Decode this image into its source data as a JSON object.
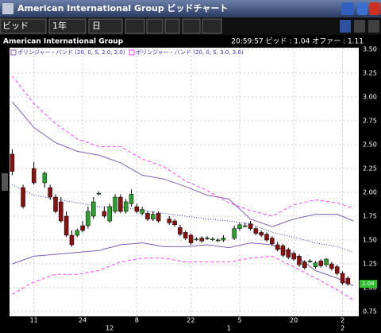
{
  "window": {
    "title": "American International Group ビッドチャート"
  },
  "toolbar": {
    "price_type": "ビッド",
    "period": "1年",
    "interval": "日"
  },
  "header": {
    "symbol": "American International Group",
    "quote": "20:59:57  ビッド : 1.04  オファー : 1.11"
  },
  "chart_data": {
    "type": "candlestick",
    "x": [
      0,
      2,
      4,
      6,
      7,
      8,
      9,
      10,
      11,
      12,
      13,
      14,
      15,
      16,
      17,
      18,
      19,
      20,
      21,
      22,
      23,
      24,
      25,
      26,
      27,
      29,
      30,
      31,
      32,
      33,
      34,
      35,
      36,
      37,
      38,
      39,
      41,
      42,
      43,
      44,
      45,
      46,
      47,
      48,
      49,
      50,
      51,
      52,
      53,
      54,
      55,
      56,
      57,
      58,
      59,
      60,
      61,
      62
    ],
    "open": [
      2.4,
      2.05,
      2.25,
      2.1,
      2.05,
      1.95,
      1.9,
      1.75,
      1.55,
      1.55,
      1.65,
      1.65,
      1.75,
      1.99,
      1.8,
      1.7,
      1.8,
      1.95,
      1.8,
      1.88,
      1.85,
      1.78,
      1.78,
      1.72,
      1.78,
      1.72,
      1.7,
      1.63,
      1.58,
      1.55,
      1.51,
      1.52,
      1.52,
      1.51,
      1.5,
      1.5,
      1.52,
      1.62,
      1.65,
      1.67,
      1.62,
      1.58,
      1.56,
      1.52,
      1.45,
      1.44,
      1.4,
      1.36,
      1.33,
      1.27,
      1.28,
      1.22,
      1.28,
      1.24,
      1.25,
      1.22,
      1.15,
      1.1
    ],
    "high": [
      2.45,
      2.08,
      2.32,
      2.22,
      2.08,
      1.98,
      1.95,
      1.8,
      1.6,
      1.62,
      1.7,
      1.85,
      1.95,
      2.01,
      1.85,
      1.88,
      1.98,
      1.98,
      1.93,
      2.03,
      1.88,
      1.85,
      1.8,
      1.8,
      1.8,
      1.75,
      1.72,
      1.66,
      1.6,
      1.57,
      1.53,
      1.54,
      1.54,
      1.53,
      1.52,
      1.55,
      1.65,
      1.68,
      1.68,
      1.7,
      1.64,
      1.6,
      1.58,
      1.54,
      1.48,
      1.46,
      1.42,
      1.38,
      1.35,
      1.29,
      1.3,
      1.28,
      1.3,
      1.31,
      1.27,
      1.24,
      1.17,
      1.12
    ],
    "low": [
      2.18,
      1.83,
      2.08,
      2.05,
      1.92,
      1.78,
      1.68,
      1.53,
      1.43,
      1.53,
      1.58,
      1.62,
      1.72,
      1.97,
      1.73,
      1.68,
      1.78,
      1.78,
      1.78,
      1.85,
      1.78,
      1.76,
      1.7,
      1.7,
      1.68,
      1.66,
      1.64,
      1.54,
      1.5,
      1.45,
      1.49,
      1.47,
      1.5,
      1.49,
      1.48,
      1.48,
      1.5,
      1.6,
      1.63,
      1.6,
      1.55,
      1.53,
      1.48,
      1.44,
      1.38,
      1.32,
      1.3,
      1.28,
      1.22,
      1.19,
      1.26,
      1.2,
      1.21,
      1.22,
      1.18,
      1.13,
      1.03,
      1.02
    ],
    "close": [
      2.22,
      1.85,
      2.1,
      2.2,
      1.95,
      1.8,
      1.7,
      1.55,
      1.45,
      1.6,
      1.6,
      1.8,
      1.9,
      1.99,
      1.75,
      1.85,
      1.95,
      1.8,
      1.9,
      1.98,
      1.8,
      1.82,
      1.72,
      1.77,
      1.7,
      1.68,
      1.66,
      1.56,
      1.52,
      1.47,
      1.51,
      1.49,
      1.52,
      1.51,
      1.5,
      1.52,
      1.62,
      1.66,
      1.65,
      1.62,
      1.57,
      1.55,
      1.5,
      1.46,
      1.4,
      1.34,
      1.32,
      1.3,
      1.24,
      1.21,
      1.28,
      1.26,
      1.23,
      1.3,
      1.2,
      1.15,
      1.05,
      1.04
    ],
    "up_color": "#2ca02c",
    "down_color": "#8b1010",
    "indicators": [
      {
        "name": "ボリンジャー・バンド (20, 0, S, 2.0, 2.0)",
        "color": "#8060b0",
        "middle_color": "#3030c0",
        "x": [
          0,
          4,
          8,
          12,
          16,
          20,
          24,
          28,
          32,
          36,
          40,
          44,
          48,
          52,
          56,
          60,
          63
        ],
        "upper": [
          2.95,
          2.68,
          2.52,
          2.43,
          2.39,
          2.31,
          2.18,
          2.14,
          2.06,
          1.97,
          1.93,
          1.72,
          1.64,
          1.72,
          1.77,
          1.77,
          1.7
        ],
        "middle": [
          2.08,
          1.97,
          1.93,
          1.89,
          1.85,
          1.85,
          1.81,
          1.78,
          1.75,
          1.72,
          1.7,
          1.67,
          1.58,
          1.53,
          1.47,
          1.43,
          1.37
        ],
        "lower": [
          1.25,
          1.33,
          1.35,
          1.37,
          1.39,
          1.45,
          1.47,
          1.43,
          1.43,
          1.45,
          1.42,
          1.47,
          1.45,
          1.35,
          1.18,
          1.1,
          1.02
        ]
      },
      {
        "name": "ボリンジャー・バンド (20, 0, S, 3.0, 3.0)",
        "color": "#ff40ff",
        "x": [
          0,
          4,
          8,
          12,
          16,
          20,
          24,
          28,
          32,
          36,
          40,
          44,
          48,
          52,
          56,
          60,
          63
        ],
        "upper": [
          3.22,
          2.93,
          2.72,
          2.56,
          2.48,
          2.48,
          2.35,
          2.27,
          2.12,
          2.02,
          1.89,
          1.81,
          1.75,
          1.87,
          1.92,
          1.89,
          1.83
        ],
        "lower": [
          0.93,
          1.06,
          1.14,
          1.14,
          1.18,
          1.27,
          1.31,
          1.31,
          1.27,
          1.27,
          1.27,
          1.31,
          1.33,
          1.22,
          1.1,
          0.98,
          0.87
        ]
      }
    ],
    "last_value": {
      "value": 1.04,
      "label": "1.04"
    },
    "xlim": [
      -0.5,
      64
    ],
    "xticks": [
      {
        "value": 4,
        "label": "11"
      },
      {
        "value": 13,
        "label": "24"
      },
      {
        "value": 23,
        "label": "8"
      },
      {
        "value": 33,
        "label": "22"
      },
      {
        "value": 42,
        "label": "5"
      },
      {
        "value": 52,
        "label": "20"
      },
      {
        "value": 61,
        "label": "2"
      }
    ],
    "month_ticks": [
      {
        "value": 18,
        "label": "12"
      },
      {
        "value": 40,
        "label": "1"
      },
      {
        "value": 61,
        "label": "2"
      }
    ],
    "ylim": [
      0.75,
      3.5
    ],
    "yticks": [
      {
        "value": 0.75,
        "label": "0.75"
      },
      {
        "value": 1,
        "label": "1.00"
      },
      {
        "value": 1.25,
        "label": "1.25"
      },
      {
        "value": 1.5,
        "label": "1.50"
      },
      {
        "value": 1.75,
        "label": "1.75"
      },
      {
        "value": 2,
        "label": "2.00"
      },
      {
        "value": 2.25,
        "label": "2.25"
      },
      {
        "value": 2.5,
        "label": "2.50"
      },
      {
        "value": 2.75,
        "label": "2.75"
      },
      {
        "value": 3,
        "label": "3.00"
      },
      {
        "value": 3.25,
        "label": "3.25"
      },
      {
        "value": 3.5,
        "label": "3.50"
      }
    ],
    "grid": true
  }
}
